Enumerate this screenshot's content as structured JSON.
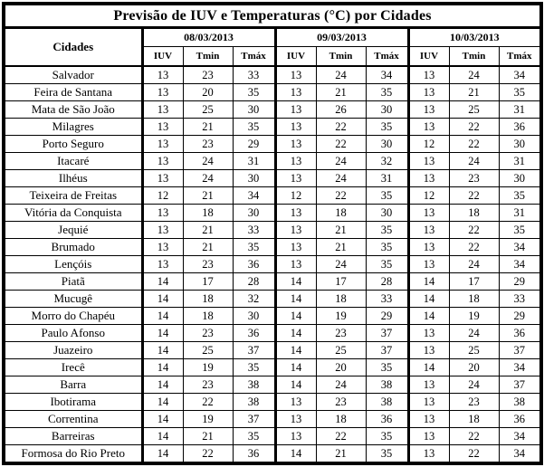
{
  "title": "Previsão de IUV e Temperaturas (°C) por Cidades",
  "table": {
    "city_header": "Cidades",
    "dates": [
      "08/03/2013",
      "09/03/2013",
      "10/03/2013"
    ],
    "subheaders": [
      "IUV",
      "Tmin",
      "Tmáx"
    ],
    "rows": [
      {
        "city": "Salvador",
        "values": [
          13,
          23,
          33,
          13,
          24,
          34,
          13,
          24,
          34
        ]
      },
      {
        "city": "Feira de Santana",
        "values": [
          13,
          20,
          35,
          13,
          21,
          35,
          13,
          21,
          35
        ]
      },
      {
        "city": "Mata de São João",
        "values": [
          13,
          25,
          30,
          13,
          26,
          30,
          13,
          25,
          31
        ]
      },
      {
        "city": "Milagres",
        "values": [
          13,
          21,
          35,
          13,
          22,
          35,
          13,
          22,
          36
        ]
      },
      {
        "city": "Porto Seguro",
        "values": [
          13,
          23,
          29,
          13,
          22,
          30,
          12,
          22,
          30
        ]
      },
      {
        "city": "Itacaré",
        "values": [
          13,
          24,
          31,
          13,
          24,
          32,
          13,
          24,
          31
        ]
      },
      {
        "city": "Ilhéus",
        "values": [
          13,
          24,
          30,
          13,
          24,
          31,
          13,
          23,
          30
        ]
      },
      {
        "city": "Teixeira de Freitas",
        "values": [
          12,
          21,
          34,
          12,
          22,
          35,
          12,
          22,
          35
        ]
      },
      {
        "city": "Vitória da Conquista",
        "values": [
          13,
          18,
          30,
          13,
          18,
          30,
          13,
          18,
          31
        ]
      },
      {
        "city": "Jequié",
        "values": [
          13,
          21,
          33,
          13,
          21,
          35,
          13,
          22,
          35
        ]
      },
      {
        "city": "Brumado",
        "values": [
          13,
          21,
          35,
          13,
          21,
          35,
          13,
          22,
          34
        ]
      },
      {
        "city": "Lençóis",
        "values": [
          13,
          23,
          36,
          13,
          24,
          35,
          13,
          24,
          34
        ]
      },
      {
        "city": "Piatã",
        "values": [
          14,
          17,
          28,
          14,
          17,
          28,
          14,
          17,
          29
        ]
      },
      {
        "city": "Mucugê",
        "values": [
          14,
          18,
          32,
          14,
          18,
          33,
          14,
          18,
          33
        ]
      },
      {
        "city": "Morro do Chapéu",
        "values": [
          14,
          18,
          30,
          14,
          19,
          29,
          14,
          19,
          29
        ]
      },
      {
        "city": "Paulo Afonso",
        "values": [
          14,
          23,
          36,
          14,
          23,
          37,
          13,
          24,
          36
        ]
      },
      {
        "city": "Juazeiro",
        "values": [
          14,
          25,
          37,
          14,
          25,
          37,
          13,
          25,
          37
        ]
      },
      {
        "city": "Irecê",
        "values": [
          14,
          19,
          35,
          14,
          20,
          35,
          14,
          20,
          34
        ]
      },
      {
        "city": "Barra",
        "values": [
          14,
          23,
          38,
          14,
          24,
          38,
          13,
          24,
          37
        ]
      },
      {
        "city": "Ibotirama",
        "values": [
          14,
          22,
          38,
          13,
          23,
          38,
          13,
          23,
          38
        ]
      },
      {
        "city": "Correntina",
        "values": [
          14,
          19,
          37,
          13,
          18,
          36,
          13,
          18,
          36
        ]
      },
      {
        "city": "Barreiras",
        "values": [
          14,
          21,
          35,
          13,
          22,
          35,
          13,
          22,
          34
        ]
      },
      {
        "city": "Formosa do Rio Preto",
        "values": [
          14,
          22,
          36,
          14,
          21,
          35,
          13,
          22,
          34
        ]
      }
    ]
  }
}
